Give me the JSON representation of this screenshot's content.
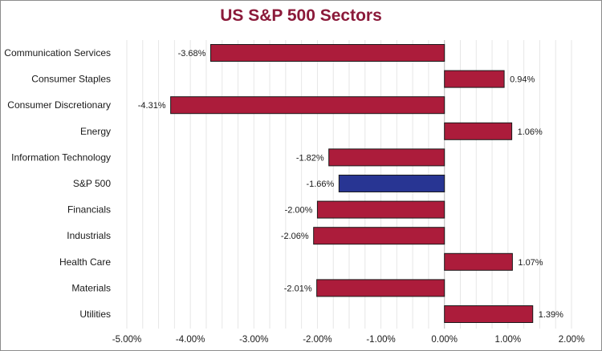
{
  "chart_data": {
    "type": "bar",
    "orientation": "horizontal",
    "title": "US S&P 500 Sectors",
    "categories": [
      "Communication Services",
      "Consumer Staples",
      "Consumer Discretionary",
      "Energy",
      "Information Technology",
      "S&P 500",
      "Financials",
      "Industrials",
      "Health Care",
      "Materials",
      "Utilities"
    ],
    "values": [
      -3.68,
      0.94,
      -4.31,
      1.06,
      -1.82,
      -1.66,
      -2.0,
      -2.06,
      1.07,
      -2.01,
      1.39
    ],
    "data_labels": [
      "-3.68%",
      "0.94%",
      "-4.31%",
      "1.06%",
      "-1.82%",
      "-1.66%",
      "-2.00%",
      "-2.06%",
      "1.07%",
      "-2.01%",
      "1.39%"
    ],
    "xlim": [
      -5,
      2
    ],
    "xticks": [
      -5,
      -4,
      -3,
      -2,
      -1,
      0,
      1,
      2
    ],
    "xtick_labels": [
      "-5.00%",
      "-4.00%",
      "-3.00%",
      "-2.00%",
      "-1.00%",
      "0.00%",
      "1.00%",
      "2.00%"
    ],
    "grid": "vertical-minor",
    "legend": "none",
    "colors": {
      "bar": "#ac1c3b",
      "highlight": "#283593",
      "highlight_category": "S&P 500",
      "title": "#8b1a3a",
      "grid": "#e6e6e6"
    }
  }
}
